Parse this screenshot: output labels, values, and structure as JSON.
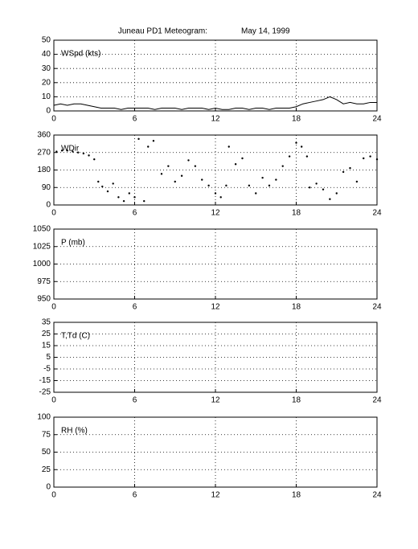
{
  "chart_data": [
    {
      "type": "line",
      "title": "Juneau PD1 Meteogram:",
      "subtitle": "May 14, 1999",
      "label": "WSpd (kts)",
      "x": [
        0,
        0.5,
        1,
        1.5,
        2,
        2.5,
        3,
        3.5,
        4,
        4.5,
        5,
        5.5,
        6,
        6.5,
        7,
        7.5,
        8,
        8.5,
        9,
        9.5,
        10,
        10.5,
        11,
        11.5,
        12,
        12.5,
        13,
        13.5,
        14,
        14.5,
        15,
        15.5,
        16,
        16.5,
        17,
        17.5,
        18,
        18.5,
        19,
        19.5,
        20,
        20.5,
        21,
        21.5,
        22,
        22.5,
        23,
        23.5,
        24
      ],
      "series": [
        {
          "color": "#000000",
          "values": [
            4,
            5,
            4,
            5,
            5,
            4,
            3,
            2,
            2,
            2,
            1,
            2,
            2,
            2,
            2,
            1,
            2,
            2,
            2,
            1,
            2,
            2,
            2,
            1,
            2,
            1,
            1,
            2,
            2,
            1,
            2,
            2,
            1,
            2,
            2,
            2,
            3,
            5,
            6,
            7,
            8,
            10,
            8,
            5,
            6,
            5,
            5,
            6,
            6
          ]
        }
      ],
      "xlim": [
        0,
        24
      ],
      "xticks": [
        0,
        6,
        12,
        18,
        24
      ],
      "ylim": [
        0,
        50
      ],
      "yticks": [
        0,
        10,
        20,
        30,
        40,
        50
      ],
      "grid": true
    },
    {
      "type": "scatter",
      "label": "WDir",
      "series": [
        {
          "color": "#000000",
          "x": [
            0.2,
            0.6,
            1,
            1.4,
            1.8,
            2.2,
            2.6,
            3,
            3.3,
            3.6,
            4,
            4.4,
            4.8,
            5.2,
            5.6,
            6,
            6.3,
            6.7,
            7,
            7.4,
            8,
            8.5,
            9,
            9.5,
            10,
            10.5,
            11,
            11.5,
            12,
            12.4,
            12.8,
            13,
            13.5,
            14,
            14.5,
            15,
            15.5,
            16,
            16.5,
            17,
            17.5,
            18,
            18.4,
            18.8,
            19,
            19.5,
            20,
            20.5,
            21,
            21.5,
            22,
            22.5,
            23,
            23.5,
            24
          ],
          "values": [
            275,
            280,
            280,
            275,
            270,
            265,
            255,
            235,
            120,
            95,
            70,
            110,
            40,
            20,
            60,
            40,
            340,
            20,
            300,
            330,
            160,
            200,
            120,
            150,
            230,
            200,
            130,
            100,
            60,
            40,
            100,
            300,
            210,
            240,
            100,
            60,
            140,
            100,
            130,
            200,
            250,
            320,
            300,
            250,
            90,
            110,
            80,
            30,
            60,
            170,
            190,
            120,
            240,
            250,
            235
          ]
        }
      ],
      "xlim": [
        0,
        24
      ],
      "xticks": [
        0,
        6,
        12,
        18,
        24
      ],
      "ylim": [
        0,
        360
      ],
      "yticks": [
        0,
        90,
        180,
        270,
        360
      ],
      "grid": true
    },
    {
      "type": "line",
      "label": "P (mb)",
      "series": [],
      "xlim": [
        0,
        24
      ],
      "xticks": [
        0,
        6,
        12,
        18,
        24
      ],
      "ylim": [
        950,
        1050
      ],
      "yticks": [
        950,
        975,
        1000,
        1025,
        1050
      ],
      "grid": true
    },
    {
      "type": "line",
      "label": "T,Td (C)",
      "series": [],
      "xlim": [
        0,
        24
      ],
      "xticks": [
        0,
        6,
        12,
        18,
        24
      ],
      "ylim": [
        -25,
        35
      ],
      "yticks": [
        -25,
        -15,
        -5,
        5,
        15,
        25,
        35
      ],
      "grid": true
    },
    {
      "type": "line",
      "label": "RH (%)",
      "series": [],
      "xlim": [
        0,
        24
      ],
      "xticks": [
        0,
        6,
        12,
        18,
        24
      ],
      "ylim": [
        0,
        100
      ],
      "yticks": [
        0,
        25,
        50,
        75,
        100
      ],
      "grid": true
    }
  ]
}
